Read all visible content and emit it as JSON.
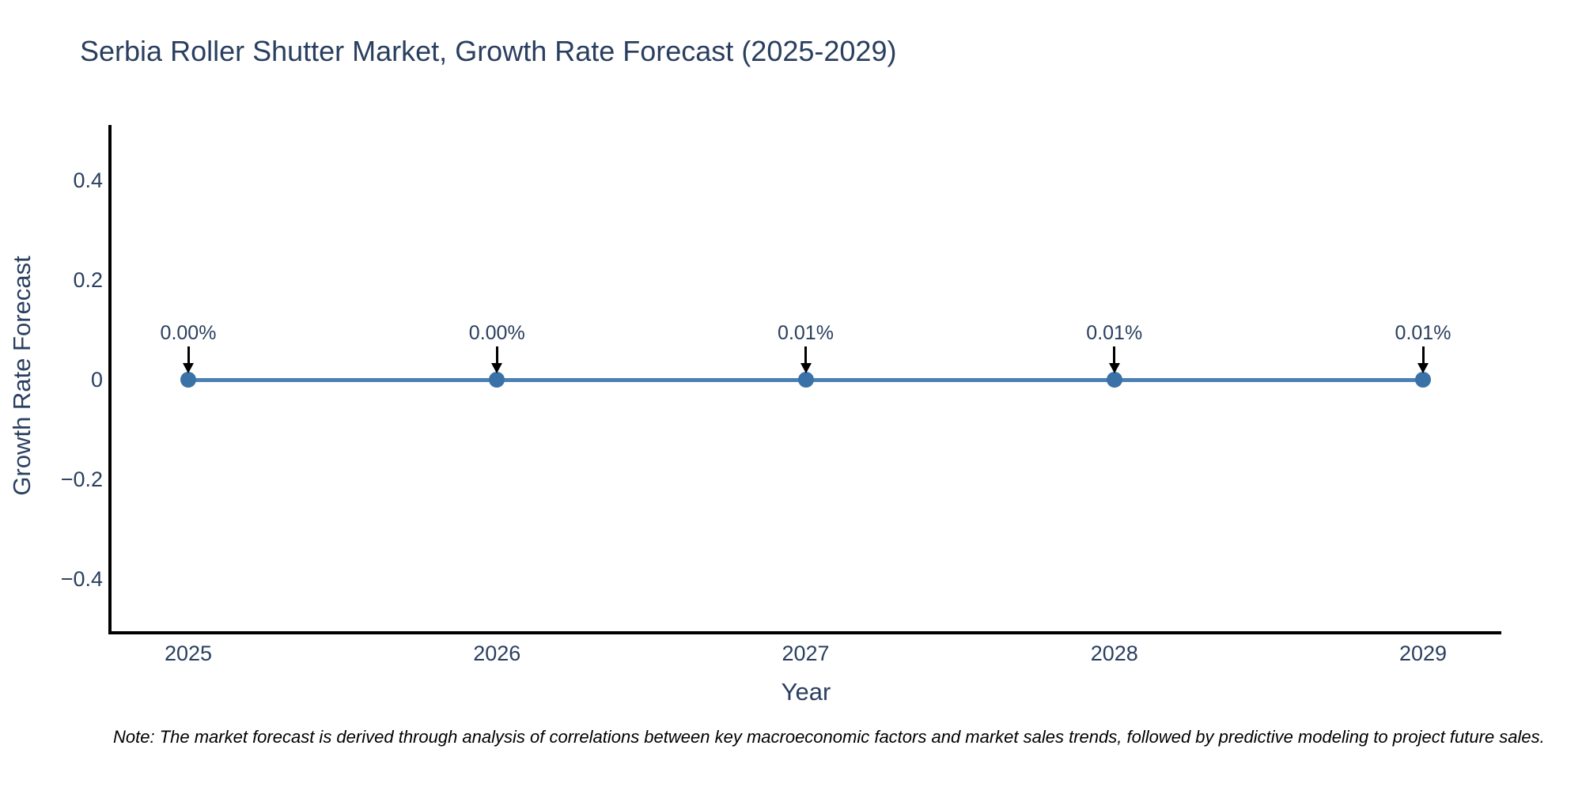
{
  "page": {
    "background": "#ffffff"
  },
  "chart_data": {
    "type": "line",
    "title": "Serbia Roller Shutter Market, Growth Rate Forecast (2025-2029)",
    "xlabel": "Year",
    "ylabel": "Growth Rate Forecast",
    "x": [
      2025,
      2026,
      2027,
      2028,
      2029
    ],
    "values_pct": [
      0.0,
      0.0,
      0.01,
      0.01,
      0.01
    ],
    "point_labels": [
      "0.00%",
      "0.00%",
      "0.01%",
      "0.01%",
      "0.01%"
    ],
    "x_tick_labels": [
      "2025",
      "2026",
      "2027",
      "2028",
      "2029"
    ],
    "y_tick_labels": [
      "0.4",
      "0.2",
      "0",
      "−0.2",
      "−0.4"
    ],
    "y_tick_values": [
      0.4,
      0.2,
      0,
      -0.2,
      -0.4
    ],
    "ylim": [
      -0.5,
      0.51
    ],
    "xlim": [
      2024.75,
      2029.26
    ],
    "grid": false,
    "legend": false,
    "marker_style": "circle",
    "annotation_arrow": "down-arrow",
    "colors": {
      "line": "#4a80b4",
      "marker": "#3a72a8",
      "axis": "#000000",
      "text": "#2a3f5f",
      "arrow": "#000000",
      "note": "#000000"
    },
    "note": "Note: The market forecast is derived through analysis of correlations between key macroeconomic factors and market sales trends, followed by predictive modeling to project future sales."
  }
}
